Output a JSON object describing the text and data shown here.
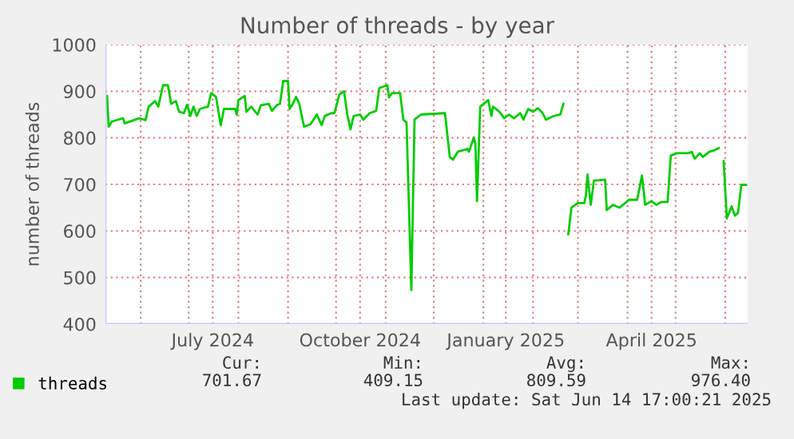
{
  "chart_data": {
    "type": "line",
    "title": "Number of threads - by year",
    "ylabel": "number of threads",
    "xlim": [
      "2024-05-10",
      "2025-06-15"
    ],
    "ylim": [
      400,
      1000
    ],
    "yticks": [
      400,
      500,
      600,
      700,
      800,
      900,
      1000
    ],
    "xticks": [
      {
        "value": "2024-06-01",
        "label": null
      },
      {
        "value": "2024-07-01",
        "label": null
      },
      {
        "value": "2024-07-16",
        "label": "July 2024"
      },
      {
        "value": "2024-08-01",
        "label": null
      },
      {
        "value": "2024-09-01",
        "label": null
      },
      {
        "value": "2024-10-01",
        "label": null
      },
      {
        "value": "2024-10-16",
        "label": "October 2024"
      },
      {
        "value": "2024-11-01",
        "label": null
      },
      {
        "value": "2024-12-01",
        "label": null
      },
      {
        "value": "2025-01-01",
        "label": null
      },
      {
        "value": "2025-01-15",
        "label": "January 2025"
      },
      {
        "value": "2025-02-01",
        "label": null
      },
      {
        "value": "2025-03-01",
        "label": null
      },
      {
        "value": "2025-04-01",
        "label": null
      },
      {
        "value": "2025-04-16",
        "label": "April 2025"
      },
      {
        "value": "2025-05-01",
        "label": null
      },
      {
        "value": "2025-06-01",
        "label": null
      }
    ],
    "grid": true,
    "legend": "bottom left",
    "annotations": [
      "Cur:",
      "Min:",
      "Avg:",
      "Max:",
      "701.67",
      "409.15",
      "809.59",
      "976.40",
      "Last update: Sat Jun 14 17:00:21 2025"
    ],
    "series": [
      {
        "name": "threads",
        "color": "#00cc00",
        "x": [
          "2024-05-11",
          "2024-05-12",
          "2024-05-14",
          "2024-05-21",
          "2024-05-22",
          "2024-05-31",
          "2024-06-04",
          "2024-06-06",
          "2024-06-10",
          "2024-06-12",
          "2024-06-15",
          "2024-06-18",
          "2024-06-20",
          "2024-06-23",
          "2024-06-25",
          "2024-06-28",
          "2024-06-30",
          "2024-07-02",
          "2024-07-04",
          "2024-07-06",
          "2024-07-08",
          "2024-07-13",
          "2024-07-15",
          "2024-07-18",
          "2024-07-21",
          "2024-07-23",
          "2024-07-30",
          "2024-07-31",
          "2024-08-01",
          "2024-08-05",
          "2024-08-06",
          "2024-08-09",
          "2024-08-13",
          "2024-08-15",
          "2024-08-20",
          "2024-08-22",
          "2024-08-25",
          "2024-08-27",
          "2024-08-29",
          "2024-09-01",
          "2024-09-02",
          "2024-09-04",
          "2024-09-06",
          "2024-09-08",
          "2024-09-11",
          "2024-09-15",
          "2024-09-19",
          "2024-09-22",
          "2024-09-24",
          "2024-09-28",
          "2024-09-30",
          "2024-10-03",
          "2024-10-06",
          "2024-10-08",
          "2024-10-10",
          "2024-10-12",
          "2024-10-16",
          "2024-10-18",
          "2024-10-22",
          "2024-10-26",
          "2024-10-28",
          "2024-11-02",
          "2024-11-03",
          "2024-11-05",
          "2024-11-10",
          "2024-11-12",
          "2024-11-14",
          "2024-11-17",
          "2024-11-19",
          "2024-11-23",
          "2024-12-08",
          "2024-12-11",
          "2024-12-13",
          "2024-12-16",
          "2024-12-22",
          "2024-12-23",
          "2024-12-26",
          "2024-12-27",
          "2024-12-28",
          "2024-12-30",
          "2025-01-04",
          "2025-01-06",
          "2025-01-07",
          "2025-01-11",
          "2025-01-14",
          "2025-01-17",
          "2025-01-20",
          "2025-01-24",
          "2025-01-26",
          "2025-01-29",
          "2025-02-01",
          "2025-02-04",
          "2025-02-07",
          "2025-02-09",
          "2025-02-14",
          "2025-02-18",
          "2025-02-20",
          "2025-02-22",
          "2025-02-23",
          "2025-02-25",
          "2025-03-01",
          "2025-03-05",
          "2025-03-06",
          "2025-03-07",
          "2025-03-09",
          "2025-03-11",
          "2025-03-18",
          "2025-03-19",
          "2025-03-23",
          "2025-03-27",
          "2025-04-02",
          "2025-04-07",
          "2025-04-10",
          "2025-04-12",
          "2025-04-16",
          "2025-04-19",
          "2025-04-22",
          "2025-04-26",
          "2025-04-28",
          "2025-05-02",
          "2025-05-09",
          "2025-05-11",
          "2025-05-13",
          "2025-05-16",
          "2025-05-18",
          "2025-05-22",
          "2025-05-25",
          "2025-05-28",
          "2025-05-30",
          "2025-05-31",
          "2025-06-02",
          "2025-06-05",
          "2025-06-07",
          "2025-06-09",
          "2025-06-11",
          "2025-06-14"
        ],
        "values": [
          890,
          824,
          835,
          842,
          831,
          842,
          838,
          867,
          879,
          867,
          913,
          913,
          873,
          879,
          856,
          853,
          871,
          847,
          867,
          847,
          862,
          867,
          896,
          888,
          827,
          862,
          862,
          850,
          881,
          890,
          856,
          867,
          850,
          870,
          873,
          858,
          870,
          873,
          922,
          922,
          862,
          873,
          888,
          873,
          824,
          829,
          850,
          827,
          847,
          853,
          853,
          893,
          900,
          850,
          818,
          847,
          850,
          839,
          853,
          858,
          907,
          913,
          887,
          896,
          896,
          839,
          833,
          473,
          839,
          850,
          853,
          759,
          753,
          770,
          776,
          770,
          801,
          787,
          664,
          867,
          881,
          847,
          867,
          856,
          842,
          850,
          842,
          853,
          839,
          862,
          856,
          864,
          853,
          839,
          847,
          850,
          873,
          null,
          593,
          650,
          660,
          660,
          676,
          721,
          656,
          708,
          710,
          645,
          656,
          650,
          667,
          667,
          719,
          656,
          664,
          656,
          662,
          662,
          762,
          767,
          767,
          770,
          755,
          767,
          759,
          770,
          773,
          778,
          null,
          750,
          627,
          653,
          633,
          639,
          699,
          699
        ]
      }
    ]
  }
}
